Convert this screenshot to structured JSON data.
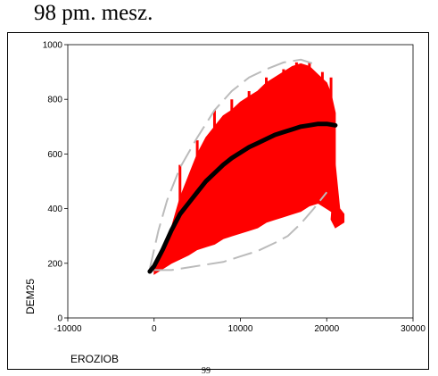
{
  "heading": "98 pm. mesz.",
  "page_fragment": "99",
  "chart_data": {
    "type": "scatter",
    "title": "",
    "xlabel": "EROZIOB",
    "ylabel": "DEM25",
    "xlim": [
      -10000,
      30000
    ],
    "ylim": [
      0,
      1000
    ],
    "x_ticks": [
      "-10000",
      "0",
      "10000",
      "20000",
      "30000"
    ],
    "y_ticks": [
      "0",
      "200",
      "400",
      "600",
      "800",
      "1000"
    ],
    "colors": {
      "points": "#ff0000",
      "trend": "#000000",
      "ellipse": "#bbbbbb"
    },
    "cloud_upper": [
      [
        0,
        175
      ],
      [
        1000,
        240
      ],
      [
        2000,
        330
      ],
      [
        3000,
        440
      ],
      [
        4000,
        520
      ],
      [
        5000,
        600
      ],
      [
        6000,
        660
      ],
      [
        7000,
        700
      ],
      [
        8000,
        740
      ],
      [
        9000,
        760
      ],
      [
        10000,
        790
      ],
      [
        11000,
        810
      ],
      [
        12000,
        830
      ],
      [
        13000,
        860
      ],
      [
        14000,
        880
      ],
      [
        15000,
        900
      ],
      [
        16000,
        920
      ],
      [
        17000,
        930
      ],
      [
        18000,
        920
      ],
      [
        19000,
        890
      ],
      [
        20000,
        860
      ],
      [
        20500,
        820
      ],
      [
        21000,
        750
      ]
    ],
    "cloud_lower": [
      [
        21000,
        380
      ],
      [
        20000,
        400
      ],
      [
        19000,
        420
      ],
      [
        18000,
        410
      ],
      [
        17000,
        390
      ],
      [
        16000,
        380
      ],
      [
        15000,
        370
      ],
      [
        14000,
        360
      ],
      [
        13000,
        350
      ],
      [
        12000,
        330
      ],
      [
        11000,
        320
      ],
      [
        10000,
        310
      ],
      [
        9000,
        300
      ],
      [
        8000,
        290
      ],
      [
        7000,
        270
      ],
      [
        6000,
        260
      ],
      [
        5000,
        250
      ],
      [
        4000,
        230
      ],
      [
        3000,
        215
      ],
      [
        2000,
        200
      ],
      [
        1000,
        180
      ],
      [
        0,
        160
      ]
    ],
    "cloud_extra": [
      [
        21000,
        560
      ],
      [
        21500,
        400
      ],
      [
        22000,
        380
      ],
      [
        22000,
        350
      ],
      [
        21000,
        330
      ],
      [
        20500,
        360
      ]
    ],
    "trend": [
      [
        -500,
        170
      ],
      [
        0,
        190
      ],
      [
        1000,
        250
      ],
      [
        2000,
        320
      ],
      [
        3000,
        380
      ],
      [
        4000,
        420
      ],
      [
        5000,
        460
      ],
      [
        6000,
        500
      ],
      [
        7000,
        530
      ],
      [
        8000,
        560
      ],
      [
        9000,
        585
      ],
      [
        10000,
        605
      ],
      [
        11000,
        625
      ],
      [
        12000,
        640
      ],
      [
        13000,
        655
      ],
      [
        14000,
        670
      ],
      [
        15000,
        680
      ],
      [
        16000,
        690
      ],
      [
        17000,
        700
      ],
      [
        18000,
        705
      ],
      [
        19000,
        710
      ],
      [
        20000,
        710
      ],
      [
        21000,
        705
      ]
    ],
    "ellipse_upper": [
      [
        -500,
        180
      ],
      [
        500,
        320
      ],
      [
        1500,
        430
      ],
      [
        3000,
        550
      ],
      [
        5000,
        660
      ],
      [
        7000,
        760
      ],
      [
        9000,
        830
      ],
      [
        11000,
        880
      ],
      [
        13000,
        910
      ],
      [
        15000,
        935
      ],
      [
        17000,
        945
      ],
      [
        18500,
        930
      ]
    ],
    "ellipse_lower": [
      [
        0,
        175
      ],
      [
        2000,
        175
      ],
      [
        4000,
        185
      ],
      [
        6000,
        195
      ],
      [
        8000,
        205
      ],
      [
        10000,
        225
      ],
      [
        12000,
        245
      ],
      [
        14000,
        275
      ],
      [
        15500,
        300
      ],
      [
        17000,
        345
      ],
      [
        18500,
        400
      ],
      [
        20000,
        460
      ]
    ]
  }
}
